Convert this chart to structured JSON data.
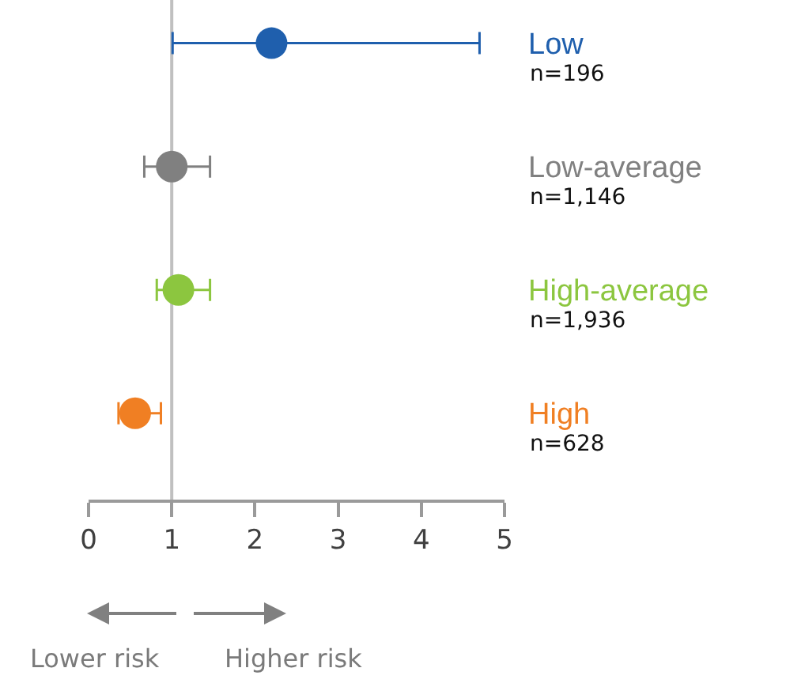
{
  "chart_data": {
    "type": "scatter",
    "orientation": "horizontal",
    "categories": [
      "Low",
      "Low-average",
      "High-average",
      "High"
    ],
    "values": [
      2.2,
      1.0,
      1.08,
      0.56
    ],
    "errors": [
      [
        1.01,
        4.7
      ],
      [
        0.67,
        1.46
      ],
      [
        0.82,
        1.46
      ],
      [
        0.36,
        0.87
      ]
    ],
    "colors": [
      "#1f5fad",
      "#808080",
      "#8cc63f",
      "#f07f23"
    ],
    "xlim": [
      0,
      5
    ],
    "xticks": [
      0,
      1,
      2,
      3,
      4,
      5
    ],
    "ref_lines": [
      {
        "axis": "x",
        "value": 1,
        "color": "#c0c0c0"
      }
    ],
    "marker": "circle",
    "grid": false,
    "annotations": [
      "Lower risk",
      "Higher risk",
      "n=196",
      "n=1,146",
      "n=1,936",
      "n=628"
    ]
  }
}
